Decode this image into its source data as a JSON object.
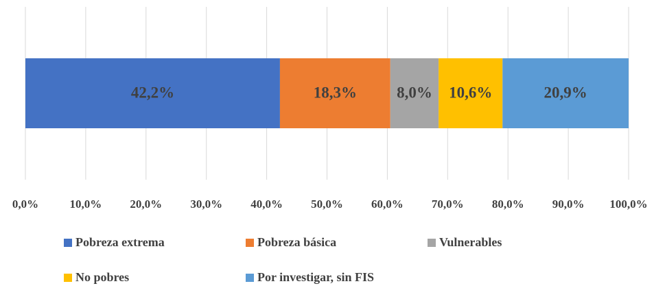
{
  "chart_data": {
    "type": "stacked_bar_horizontal",
    "categories": [
      null
    ],
    "series": [
      {
        "name": "Pobreza extrema",
        "color": "#4472c4",
        "values": [
          42.2
        ],
        "value_labels": [
          "42,2%"
        ]
      },
      {
        "name": "Pobreza básica",
        "color": "#ed7d31",
        "values": [
          18.3
        ],
        "value_labels": [
          "18,3%"
        ]
      },
      {
        "name": "Vulnerables",
        "color": "#a5a5a5",
        "values": [
          8.0
        ],
        "value_labels": [
          "8,0%"
        ]
      },
      {
        "name": "No pobres",
        "color": "#ffc000",
        "values": [
          10.6
        ],
        "value_labels": [
          "10,6%"
        ]
      },
      {
        "name": "Por investigar, sin FIS",
        "color": "#5b9bd5",
        "values": [
          20.9
        ],
        "value_labels": [
          "20,9%"
        ]
      }
    ],
    "xlim": [
      0,
      100
    ],
    "xticks": [
      {
        "value": 0,
        "label": "0,0%"
      },
      {
        "value": 10,
        "label": "10,0%"
      },
      {
        "value": 20,
        "label": "20,0%"
      },
      {
        "value": 30,
        "label": "30,0%"
      },
      {
        "value": 40,
        "label": "40,0%"
      },
      {
        "value": 50,
        "label": "50,0%"
      },
      {
        "value": 60,
        "label": "60,0%"
      },
      {
        "value": 70,
        "label": "70,0%"
      },
      {
        "value": 80,
        "label": "80,0%"
      },
      {
        "value": 90,
        "label": "90,0%"
      },
      {
        "value": 100,
        "label": "100,0%"
      }
    ],
    "grid": true,
    "legend": "bottom"
  }
}
